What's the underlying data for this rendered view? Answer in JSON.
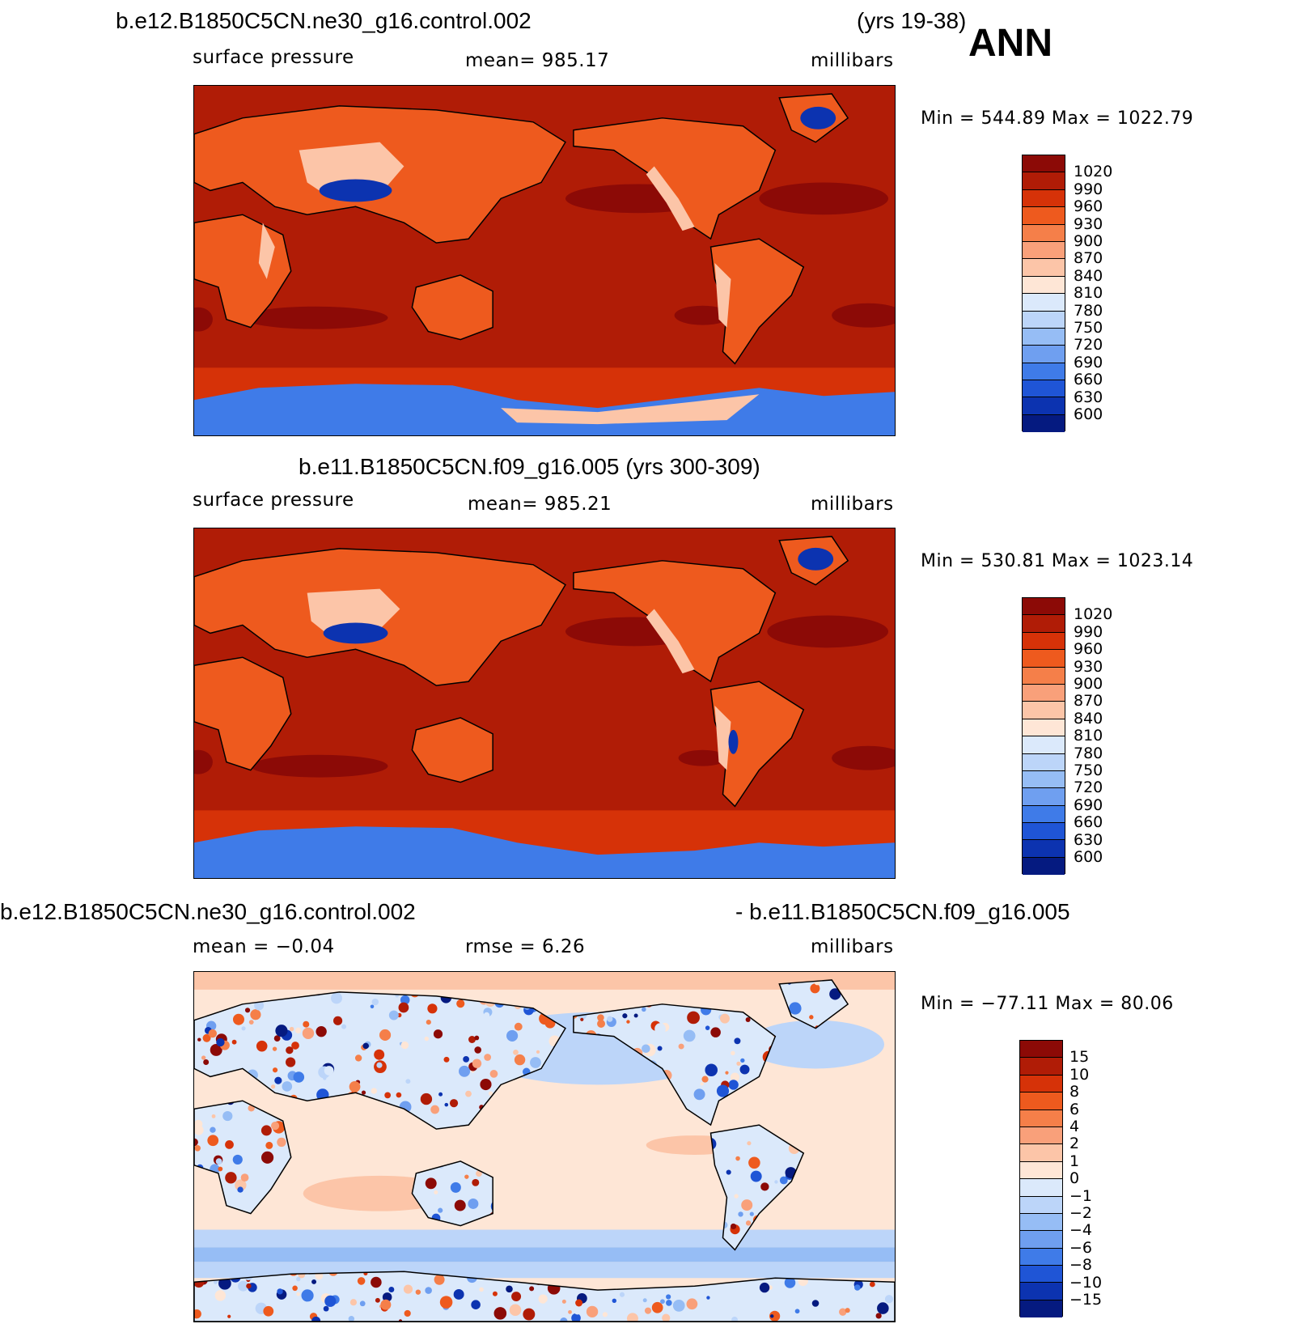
{
  "header": {
    "case1_title": "b.e12.B1850C5CN.ne30_g16.control.002",
    "case1_years": "(yrs 19-38)",
    "season": "ANN",
    "case2_title": "b.e11.B1850C5CN.f09_g16.005 (yrs 300-309)",
    "diff_title_left": "b.e12.B1850C5CN.ne30_g16.control.002",
    "diff_title_right": "- b.e11.B1850C5CN.f09_g16.005"
  },
  "panels": [
    {
      "variable": "surface pressure",
      "mean": "mean=  985.17",
      "units": "millibars",
      "minmax": "Min  =  544.89  Max  =  1022.79"
    },
    {
      "variable": "surface pressure",
      "mean": "mean=  985.21",
      "units": "millibars",
      "minmax": "Min  =  530.81  Max  =  1023.14"
    },
    {
      "mean": "mean  =   −0.04",
      "rmse": "rmse  =     6.26",
      "units": "millibars",
      "minmax": "Min  =  −77.11  Max  =    80.06"
    }
  ],
  "colorbars": {
    "abs_labels": [
      "1020",
      "990",
      "960",
      "930",
      "900",
      "870",
      "840",
      "810",
      "780",
      "750",
      "720",
      "690",
      "660",
      "630",
      "600"
    ],
    "abs_colors": [
      "#8c0a06",
      "#b01c06",
      "#d63208",
      "#ee5a1e",
      "#f57f49",
      "#f9a07a",
      "#fcc5a8",
      "#fee6d6",
      "#dbe9fb",
      "#bcd5f9",
      "#96bdf5",
      "#6f9ff0",
      "#3f7be8",
      "#1f55d6",
      "#0c33b0",
      "#051a80"
    ],
    "diff_labels": [
      "15",
      "10",
      "8",
      "6",
      "4",
      "2",
      "1",
      "0",
      "−1",
      "−2",
      "−4",
      "−6",
      "−8",
      "−10",
      "−15"
    ],
    "diff_colors": [
      "#8c0a06",
      "#b01c06",
      "#d63208",
      "#ee5a1e",
      "#f57f49",
      "#f9a07a",
      "#fcc5a8",
      "#fee6d6",
      "#dbe9fb",
      "#bcd5f9",
      "#96bdf5",
      "#6f9ff0",
      "#3f7be8",
      "#1f55d6",
      "#0c33b0",
      "#051a80"
    ]
  },
  "map_colors": {
    "ocean_abs": "#b01c06",
    "high_abs": "#8c0a06",
    "southern_band": "#d63208",
    "land_abs": "#ee5a1e",
    "highland": "#fcc5a8",
    "plateau": "#0c33b0",
    "antarctica": "#3f7be8",
    "diff_ocean": "#fee6d6",
    "diff_band": "#bcd5f9",
    "diff_band2": "#96bdf5",
    "diff_north": "#fcc5a8"
  }
}
